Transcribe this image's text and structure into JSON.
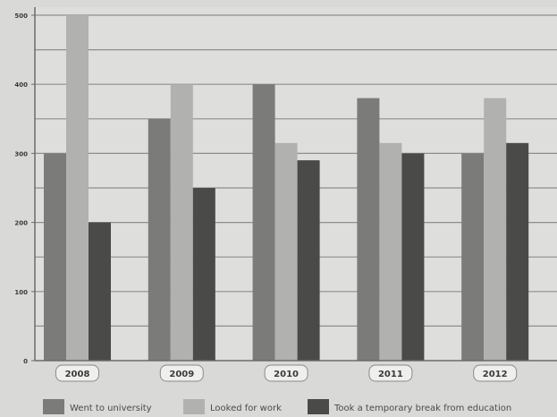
{
  "chart_data": {
    "type": "bar",
    "categories": [
      "2008",
      "2009",
      "2010",
      "2011",
      "2012"
    ],
    "series": [
      {
        "name": "Went to university",
        "values": [
          300,
          350,
          400,
          380,
          300
        ],
        "color": "#7b7b79"
      },
      {
        "name": "Looked for work",
        "values": [
          500,
          400,
          315,
          315,
          380
        ],
        "color": "#b1b1af"
      },
      {
        "name": "Took a temporary break from education",
        "values": [
          200,
          250,
          290,
          300,
          315
        ],
        "color": "#4a4a48"
      }
    ],
    "yticks": [
      "0",
      "100",
      "200",
      "300",
      "400",
      "500"
    ],
    "ylim": [
      0,
      500
    ],
    "grid": true,
    "legend_position": "bottom",
    "title": "",
    "xlabel": "",
    "ylabel": ""
  }
}
